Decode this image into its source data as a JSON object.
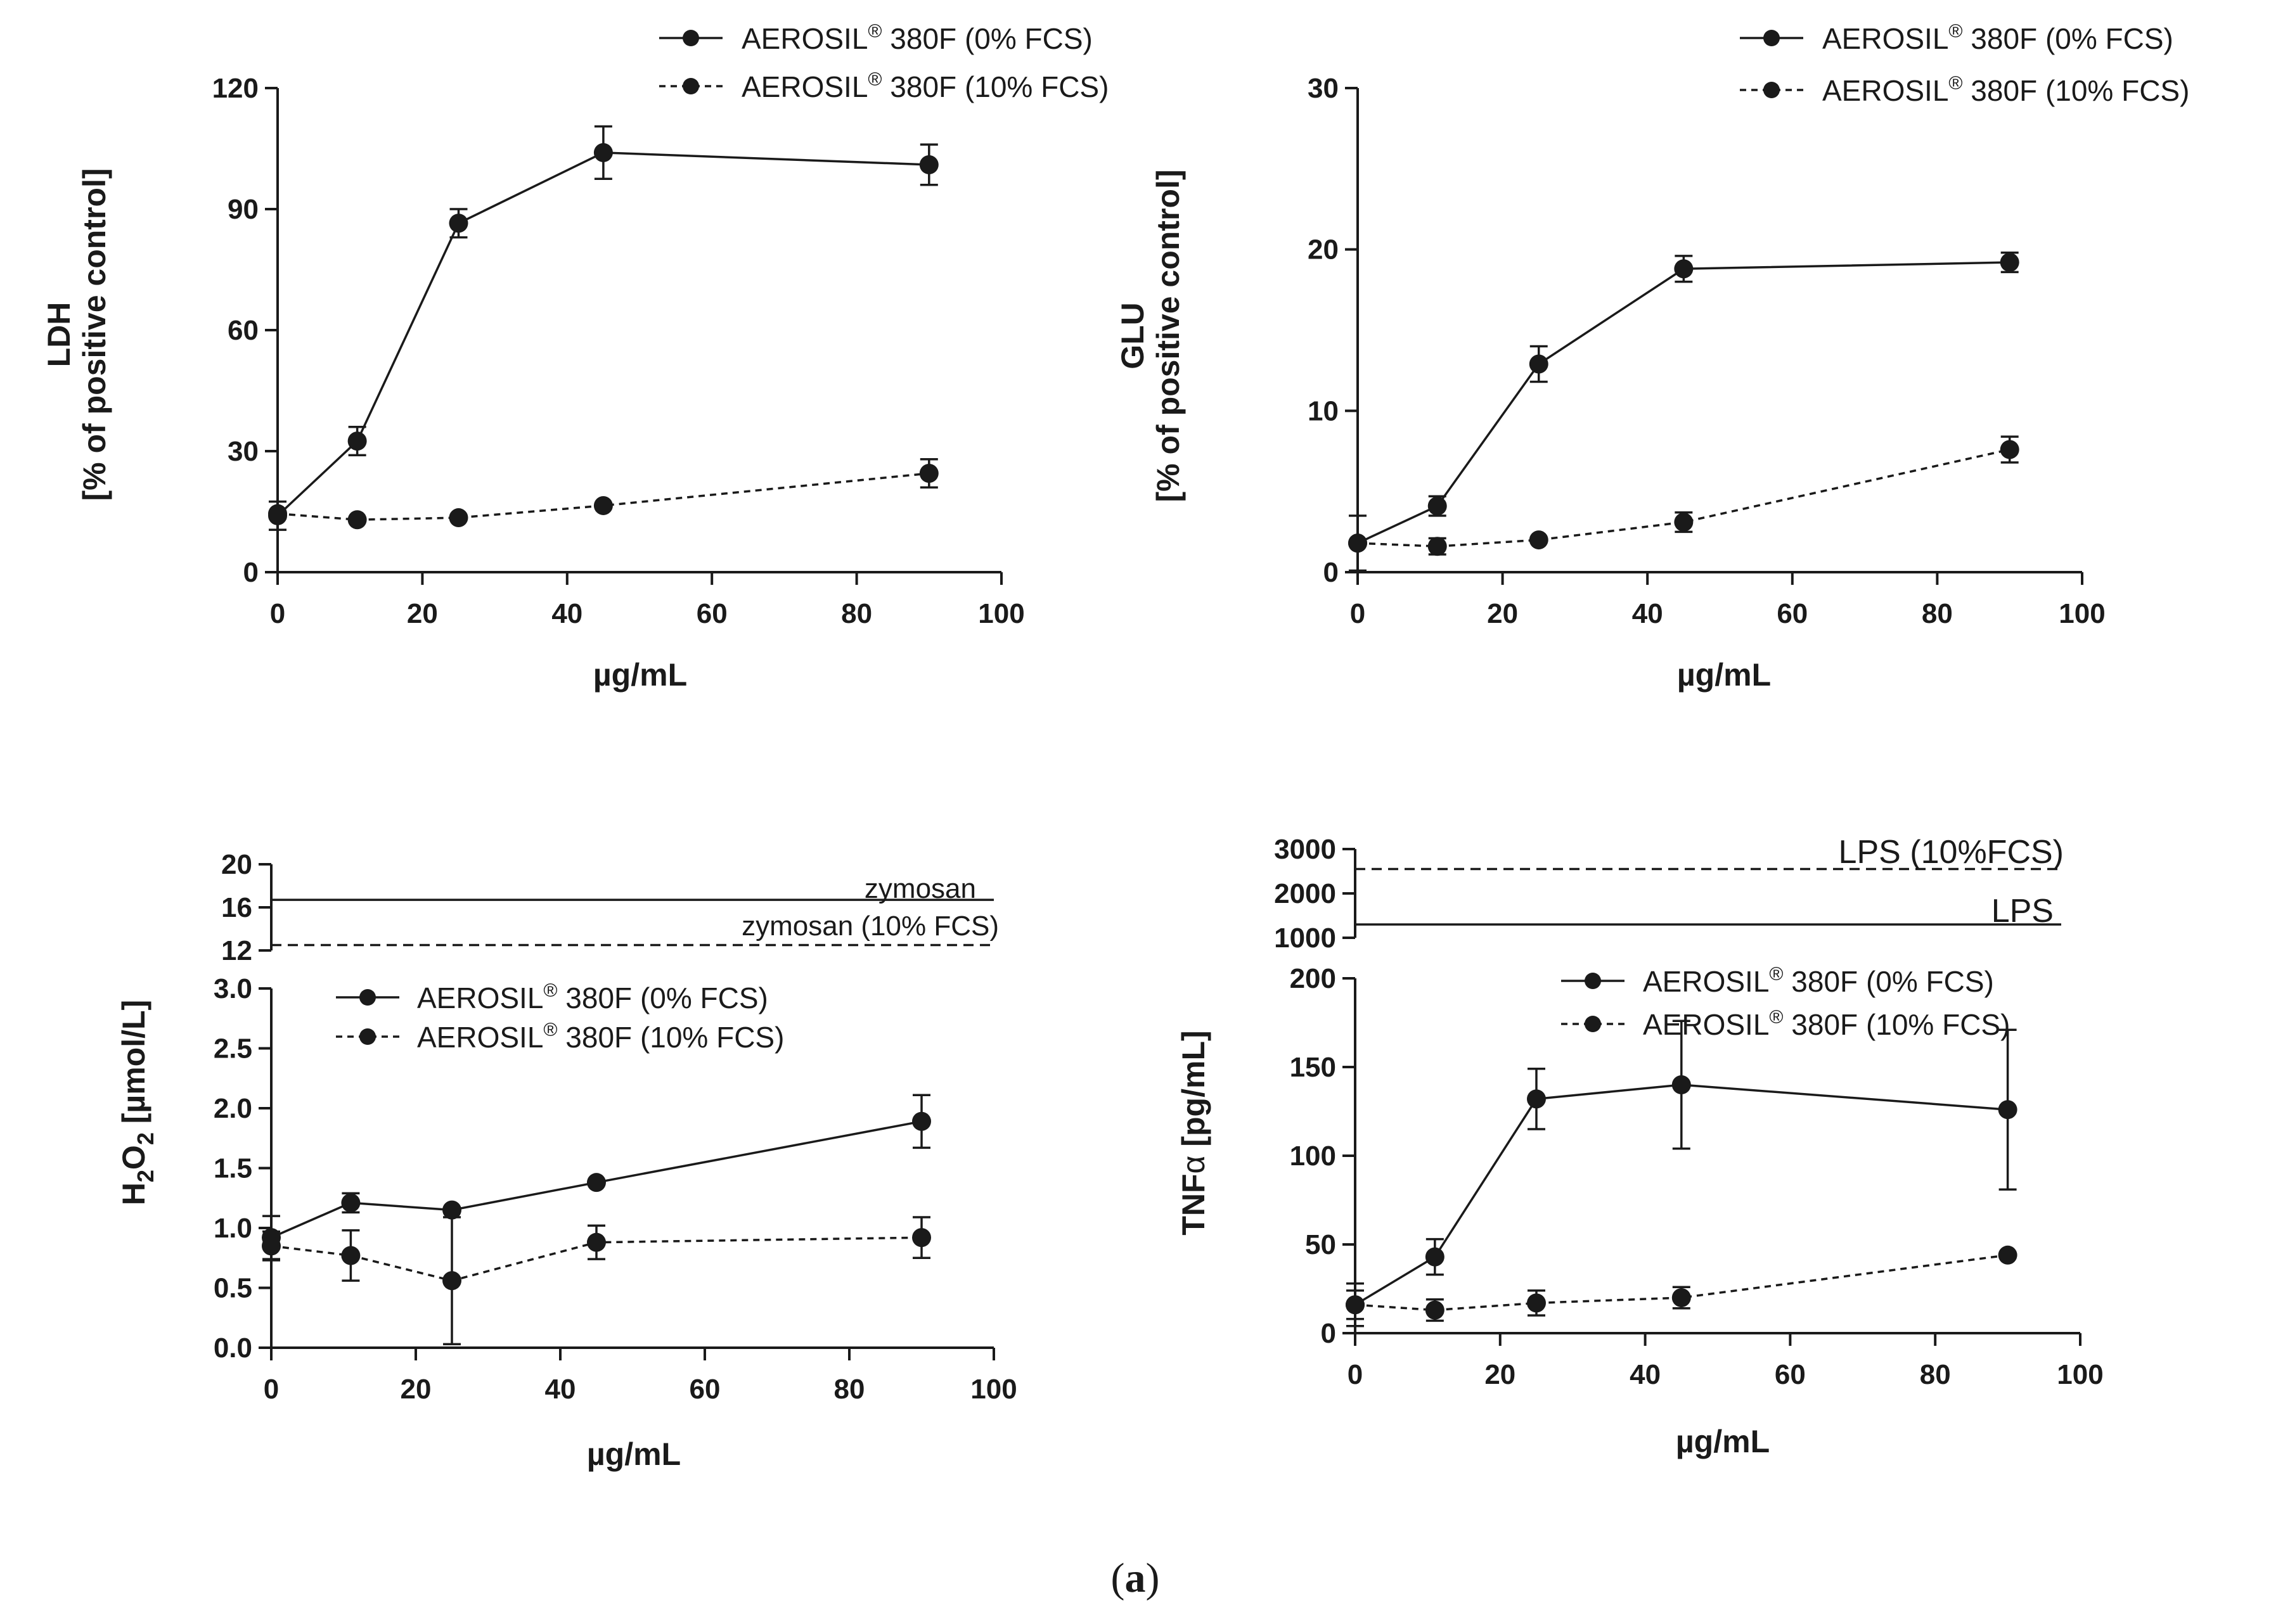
{
  "caption": {
    "open": "(",
    "letter": "a",
    "close": ")"
  },
  "chart_data": [
    {
      "type": "line",
      "id": "ldh",
      "ylabel_line1": "LDH",
      "ylabel_line2": "[% of positive control]",
      "xlabel": "µg/mL",
      "xlim": [
        0,
        100
      ],
      "xticks": [
        0,
        20,
        40,
        60,
        80,
        100
      ],
      "ylim": [
        0,
        120
      ],
      "yticks": [
        0,
        30,
        60,
        90,
        120
      ],
      "legend_position": "top-right",
      "series": [
        {
          "name": "AEROSIL",
          "sup": "®",
          "suffix": " 380F (0% FCS)",
          "style": "solid",
          "x": [
            0,
            11,
            25,
            45,
            90
          ],
          "y": [
            14,
            32.5,
            86.5,
            104,
            101
          ],
          "err": [
            3.5,
            3.5,
            3.5,
            6.5,
            5
          ]
        },
        {
          "name": "AEROSIL",
          "sup": "®",
          "suffix": " 380F (10% FCS)",
          "style": "dashed",
          "x": [
            0,
            11,
            25,
            45,
            90
          ],
          "y": [
            14.5,
            13,
            13.5,
            16.5,
            24.5
          ],
          "err": [
            0,
            0,
            0,
            0,
            3.5
          ]
        }
      ]
    },
    {
      "type": "line",
      "id": "glu",
      "ylabel_line1": "GLU",
      "ylabel_line2": "[% of positive control]",
      "xlabel": "µg/mL",
      "xlim": [
        0,
        100
      ],
      "xticks": [
        0,
        20,
        40,
        60,
        80,
        100
      ],
      "ylim": [
        0,
        30
      ],
      "yticks": [
        0,
        10,
        20,
        30
      ],
      "legend_position": "top-right",
      "series": [
        {
          "name": "AEROSIL",
          "sup": "®",
          "suffix": " 380F (0% FCS)",
          "style": "solid",
          "x": [
            0,
            11,
            25,
            45,
            90
          ],
          "y": [
            1.8,
            4.1,
            12.9,
            18.8,
            19.2
          ],
          "err": [
            1.7,
            0.6,
            1.1,
            0.8,
            0.6
          ]
        },
        {
          "name": "AEROSIL",
          "sup": "®",
          "suffix": " 380F (10% FCS)",
          "style": "dashed",
          "x": [
            0,
            11,
            25,
            45,
            90
          ],
          "y": [
            1.8,
            1.6,
            2.0,
            3.1,
            7.6
          ],
          "err": [
            0,
            0.5,
            0,
            0.6,
            0.8
          ]
        }
      ]
    },
    {
      "type": "line",
      "id": "h2o2",
      "ylabel_pre": "H",
      "ylabel_sub": "2",
      "ylabel_mid": "O",
      "ylabel_sub2": "2",
      "ylabel_post": " [µmol/L]",
      "xlabel": "µg/mL",
      "xlim": [
        0,
        100
      ],
      "xticks": [
        0,
        20,
        40,
        60,
        80,
        100
      ],
      "ylim": [
        0,
        3
      ],
      "yticks": [
        0.0,
        0.5,
        1.0,
        1.5,
        2.0,
        2.5,
        3.0
      ],
      "ytick_labels": [
        "0.0",
        "0.5",
        "1.0",
        "1.5",
        "2.0",
        "2.5",
        "3.0"
      ],
      "upper_segment": {
        "ylim": [
          12,
          20
        ],
        "yticks": [
          12,
          16,
          20
        ],
        "references": [
          {
            "label": "zymosan",
            "y": 16.7,
            "style": "solid"
          },
          {
            "label": "zymosan (10% FCS)",
            "y": 12.5,
            "style": "dashed"
          }
        ]
      },
      "legend_position": "top-left",
      "series": [
        {
          "name": "AEROSIL",
          "sup": "®",
          "suffix": " 380F (0% FCS)",
          "style": "solid",
          "x": [
            0,
            11,
            25,
            45,
            90
          ],
          "y": [
            0.92,
            1.21,
            1.15,
            1.38,
            1.89
          ],
          "err": [
            0.18,
            0.08,
            0,
            0,
            0.22
          ]
        },
        {
          "name": "AEROSIL",
          "sup": "®",
          "suffix": " 380F (10% FCS)",
          "style": "dashed",
          "x": [
            0,
            11,
            25,
            45,
            90
          ],
          "y": [
            0.85,
            0.77,
            0.56,
            0.88,
            0.92
          ],
          "err": [
            0.12,
            0.21,
            0.53,
            0.14,
            0.17
          ]
        }
      ]
    },
    {
      "type": "line",
      "id": "tnfa",
      "ylabel_pre": "TNF",
      "ylabel_greek": "α",
      "ylabel_post": " [pg/mL]",
      "xlabel": "µg/mL",
      "xlim": [
        0,
        100
      ],
      "xticks": [
        0,
        20,
        40,
        60,
        80,
        100
      ],
      "ylim": [
        0,
        200
      ],
      "yticks": [
        0,
        50,
        100,
        150,
        200
      ],
      "upper_segment": {
        "ylim": [
          1000,
          3000
        ],
        "yticks": [
          1000,
          2000,
          3000
        ],
        "references": [
          {
            "label": "LPS (10%FCS)",
            "y": 2550,
            "style": "dashed"
          },
          {
            "label": "LPS",
            "y": 1300,
            "style": "solid"
          }
        ]
      },
      "legend_position": "top-right",
      "series": [
        {
          "name": "AEROSIL",
          "sup": "®",
          "suffix": " 380F (0% FCS)",
          "style": "solid",
          "x": [
            0,
            11,
            25,
            45,
            90
          ],
          "y": [
            16,
            43,
            132,
            140,
            126
          ],
          "err": [
            12,
            10,
            17,
            36,
            45
          ]
        },
        {
          "name": "AEROSIL",
          "sup": "®",
          "suffix": " 380F (10% FCS)",
          "style": "dashed",
          "x": [
            0,
            11,
            25,
            45,
            90
          ],
          "y": [
            16,
            13,
            17,
            20,
            44
          ],
          "err": [
            8,
            6,
            7,
            6,
            0
          ]
        }
      ]
    }
  ]
}
